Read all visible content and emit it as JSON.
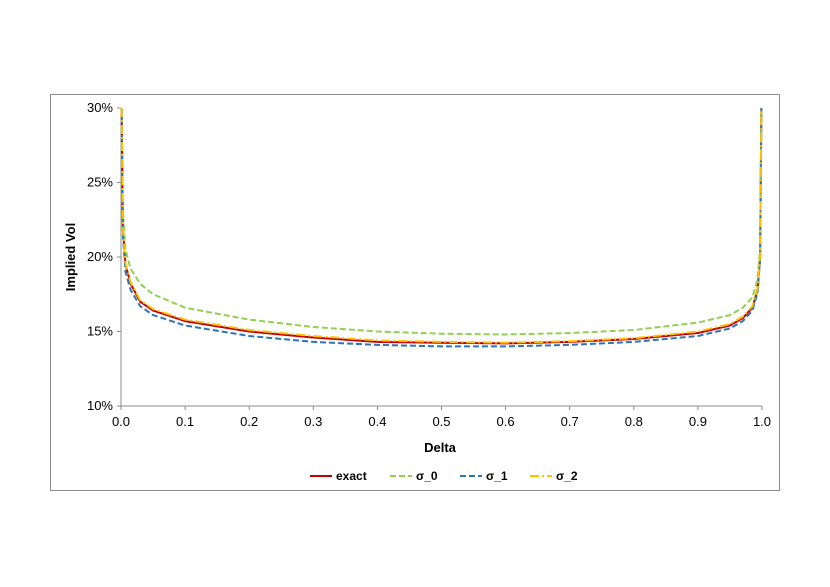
{
  "chart_data": {
    "type": "line",
    "title": "",
    "xlabel": "Delta",
    "ylabel": "Implied Vol",
    "xlim": [
      0.0,
      1.0
    ],
    "ylim": [
      0.1,
      0.3
    ],
    "x_ticks": [
      "0.0",
      "0.1",
      "0.2",
      "0.3",
      "0.4",
      "0.5",
      "0.6",
      "0.7",
      "0.8",
      "0.9",
      "1.0"
    ],
    "y_ticks": [
      "10%",
      "15%",
      "20%",
      "25%",
      "30%"
    ],
    "grid": false,
    "legend_position": "bottom",
    "x": [
      0.001,
      0.003,
      0.007,
      0.015,
      0.03,
      0.05,
      0.1,
      0.2,
      0.3,
      0.4,
      0.5,
      0.6,
      0.7,
      0.8,
      0.9,
      0.95,
      0.97,
      0.985,
      0.993,
      0.997,
      0.999
    ],
    "series": [
      {
        "name": "exact",
        "color": "#c00000",
        "dash": "solid",
        "values": [
          0.3,
          0.22,
          0.195,
          0.182,
          0.17,
          0.164,
          0.157,
          0.15,
          0.146,
          0.143,
          0.1425,
          0.142,
          0.143,
          0.145,
          0.149,
          0.154,
          0.159,
          0.166,
          0.178,
          0.2,
          0.3
        ]
      },
      {
        "name": "σ_0",
        "color": "#92d050",
        "dash": "dashed",
        "values": [
          0.3,
          0.23,
          0.205,
          0.192,
          0.182,
          0.175,
          0.166,
          0.158,
          0.153,
          0.15,
          0.1485,
          0.148,
          0.149,
          0.151,
          0.156,
          0.161,
          0.166,
          0.173,
          0.185,
          0.205,
          0.3
        ]
      },
      {
        "name": "σ_1",
        "color": "#2e75b6",
        "dash": "dashed",
        "values": [
          0.3,
          0.215,
          0.19,
          0.178,
          0.167,
          0.161,
          0.154,
          0.147,
          0.143,
          0.141,
          0.14,
          0.14,
          0.141,
          0.143,
          0.147,
          0.152,
          0.157,
          0.164,
          0.176,
          0.198,
          0.3
        ]
      },
      {
        "name": "σ_2",
        "color": "#ffc000",
        "dash": "dashdot",
        "values": [
          0.3,
          0.22,
          0.196,
          0.183,
          0.171,
          0.165,
          0.158,
          0.151,
          0.147,
          0.144,
          0.143,
          0.1425,
          0.1435,
          0.1455,
          0.15,
          0.155,
          0.16,
          0.167,
          0.179,
          0.201,
          0.3
        ]
      }
    ]
  }
}
